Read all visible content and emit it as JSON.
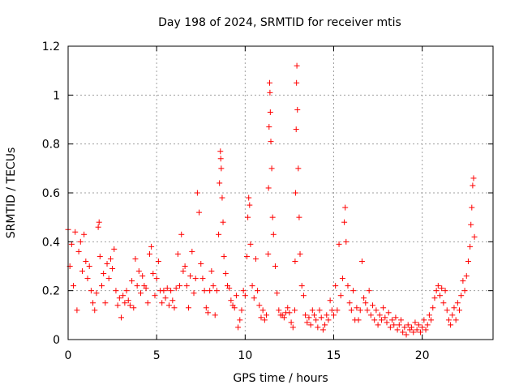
{
  "chart_data": {
    "type": "scatter",
    "title": "Day 198 of 2024, SRMTID for receiver mtis",
    "xlabel": "GPS time / hours",
    "ylabel": "SRMTID / TECUs",
    "xlim": [
      0,
      24
    ],
    "ylim": [
      0,
      1.2
    ],
    "xticks": [
      0,
      5,
      10,
      15,
      20
    ],
    "xtick_labels": [
      "0",
      "5",
      "10",
      "15",
      "20"
    ],
    "yticks": [
      0,
      0.2,
      0.4,
      0.6,
      0.8,
      1,
      1.2
    ],
    "ytick_labels": [
      "0",
      "0.2",
      "0.4",
      "0.6",
      "0.8",
      "1",
      "1.2"
    ],
    "grid": true,
    "marker": "+",
    "color": "#ff0000",
    "series": [
      {
        "name": "mtis",
        "points": [
          [
            0.0,
            0.45
          ],
          [
            0.1,
            0.3
          ],
          [
            0.2,
            0.39
          ],
          [
            0.3,
            0.22
          ],
          [
            0.4,
            0.44
          ],
          [
            0.5,
            0.12
          ],
          [
            0.6,
            0.36
          ],
          [
            0.7,
            0.4
          ],
          [
            0.8,
            0.28
          ],
          [
            0.9,
            0.43
          ],
          [
            1.0,
            0.32
          ],
          [
            1.1,
            0.25
          ],
          [
            1.2,
            0.3
          ],
          [
            1.3,
            0.2
          ],
          [
            1.4,
            0.15
          ],
          [
            1.5,
            0.12
          ],
          [
            1.6,
            0.19
          ],
          [
            1.7,
            0.46
          ],
          [
            1.75,
            0.48
          ],
          [
            1.8,
            0.34
          ],
          [
            1.9,
            0.22
          ],
          [
            2.0,
            0.27
          ],
          [
            2.1,
            0.15
          ],
          [
            2.2,
            0.31
          ],
          [
            2.3,
            0.25
          ],
          [
            2.4,
            0.33
          ],
          [
            2.5,
            0.29
          ],
          [
            2.6,
            0.37
          ],
          [
            2.7,
            0.2
          ],
          [
            2.8,
            0.14
          ],
          [
            2.9,
            0.17
          ],
          [
            3.0,
            0.09
          ],
          [
            3.1,
            0.18
          ],
          [
            3.2,
            0.15
          ],
          [
            3.3,
            0.2
          ],
          [
            3.4,
            0.16
          ],
          [
            3.5,
            0.14
          ],
          [
            3.6,
            0.24
          ],
          [
            3.7,
            0.13
          ],
          [
            3.8,
            0.33
          ],
          [
            3.9,
            0.22
          ],
          [
            4.0,
            0.28
          ],
          [
            4.1,
            0.19
          ],
          [
            4.2,
            0.26
          ],
          [
            4.3,
            0.22
          ],
          [
            4.4,
            0.21
          ],
          [
            4.5,
            0.15
          ],
          [
            4.6,
            0.35
          ],
          [
            4.7,
            0.38
          ],
          [
            4.8,
            0.27
          ],
          [
            4.9,
            0.18
          ],
          [
            5.0,
            0.25
          ],
          [
            5.1,
            0.32
          ],
          [
            5.2,
            0.2
          ],
          [
            5.3,
            0.15
          ],
          [
            5.4,
            0.2
          ],
          [
            5.5,
            0.17
          ],
          [
            5.6,
            0.21
          ],
          [
            5.7,
            0.14
          ],
          [
            5.8,
            0.2
          ],
          [
            5.9,
            0.16
          ],
          [
            6.0,
            0.13
          ],
          [
            6.1,
            0.21
          ],
          [
            6.2,
            0.35
          ],
          [
            6.3,
            0.22
          ],
          [
            6.4,
            0.43
          ],
          [
            6.5,
            0.28
          ],
          [
            6.6,
            0.3
          ],
          [
            6.7,
            0.22
          ],
          [
            6.8,
            0.13
          ],
          [
            6.9,
            0.26
          ],
          [
            7.0,
            0.36
          ],
          [
            7.1,
            0.19
          ],
          [
            7.2,
            0.25
          ],
          [
            7.3,
            0.6
          ],
          [
            7.4,
            0.52
          ],
          [
            7.5,
            0.31
          ],
          [
            7.6,
            0.25
          ],
          [
            7.7,
            0.2
          ],
          [
            7.8,
            0.13
          ],
          [
            7.9,
            0.11
          ],
          [
            8.0,
            0.2
          ],
          [
            8.1,
            0.28
          ],
          [
            8.2,
            0.22
          ],
          [
            8.3,
            0.1
          ],
          [
            8.4,
            0.2
          ],
          [
            8.5,
            0.43
          ],
          [
            8.55,
            0.64
          ],
          [
            8.6,
            0.77
          ],
          [
            8.62,
            0.74
          ],
          [
            8.65,
            0.7
          ],
          [
            8.7,
            0.58
          ],
          [
            8.75,
            0.48
          ],
          [
            8.8,
            0.34
          ],
          [
            8.9,
            0.27
          ],
          [
            9.0,
            0.22
          ],
          [
            9.1,
            0.21
          ],
          [
            9.2,
            0.16
          ],
          [
            9.3,
            0.14
          ],
          [
            9.4,
            0.13
          ],
          [
            9.5,
            0.18
          ],
          [
            9.6,
            0.05
          ],
          [
            9.7,
            0.08
          ],
          [
            9.8,
            0.12
          ],
          [
            9.9,
            0.2
          ],
          [
            10.0,
            0.18
          ],
          [
            10.1,
            0.34
          ],
          [
            10.15,
            0.5
          ],
          [
            10.2,
            0.58
          ],
          [
            10.25,
            0.55
          ],
          [
            10.3,
            0.39
          ],
          [
            10.4,
            0.22
          ],
          [
            10.5,
            0.17
          ],
          [
            10.6,
            0.33
          ],
          [
            10.7,
            0.2
          ],
          [
            10.8,
            0.14
          ],
          [
            10.9,
            0.09
          ],
          [
            11.0,
            0.12
          ],
          [
            11.1,
            0.08
          ],
          [
            11.2,
            0.1
          ],
          [
            11.3,
            0.35
          ],
          [
            11.32,
            0.62
          ],
          [
            11.35,
            0.87
          ],
          [
            11.38,
            1.05
          ],
          [
            11.4,
            1.01
          ],
          [
            11.42,
            0.93
          ],
          [
            11.45,
            0.81
          ],
          [
            11.5,
            0.7
          ],
          [
            11.55,
            0.5
          ],
          [
            11.6,
            0.43
          ],
          [
            11.7,
            0.3
          ],
          [
            11.8,
            0.19
          ],
          [
            11.9,
            0.12
          ],
          [
            12.0,
            0.1
          ],
          [
            12.1,
            0.1
          ],
          [
            12.2,
            0.09
          ],
          [
            12.3,
            0.11
          ],
          [
            12.4,
            0.13
          ],
          [
            12.5,
            0.11
          ],
          [
            12.6,
            0.07
          ],
          [
            12.7,
            0.05
          ],
          [
            12.8,
            0.12
          ],
          [
            12.82,
            0.32
          ],
          [
            12.85,
            0.6
          ],
          [
            12.88,
            0.86
          ],
          [
            12.9,
            1.05
          ],
          [
            12.92,
            1.12
          ],
          [
            12.95,
            0.94
          ],
          [
            13.0,
            0.7
          ],
          [
            13.05,
            0.5
          ],
          [
            13.1,
            0.35
          ],
          [
            13.2,
            0.22
          ],
          [
            13.3,
            0.18
          ],
          [
            13.4,
            0.1
          ],
          [
            13.5,
            0.07
          ],
          [
            13.6,
            0.09
          ],
          [
            13.7,
            0.06
          ],
          [
            13.8,
            0.12
          ],
          [
            13.9,
            0.1
          ],
          [
            14.0,
            0.08
          ],
          [
            14.1,
            0.05
          ],
          [
            14.2,
            0.12
          ],
          [
            14.3,
            0.09
          ],
          [
            14.4,
            0.04
          ],
          [
            14.5,
            0.06
          ],
          [
            14.6,
            0.1
          ],
          [
            14.7,
            0.08
          ],
          [
            14.8,
            0.16
          ],
          [
            14.9,
            0.12
          ],
          [
            15.0,
            0.1
          ],
          [
            15.1,
            0.22
          ],
          [
            15.2,
            0.12
          ],
          [
            15.3,
            0.39
          ],
          [
            15.4,
            0.18
          ],
          [
            15.5,
            0.25
          ],
          [
            15.6,
            0.48
          ],
          [
            15.65,
            0.54
          ],
          [
            15.7,
            0.4
          ],
          [
            15.8,
            0.22
          ],
          [
            15.9,
            0.15
          ],
          [
            16.0,
            0.12
          ],
          [
            16.1,
            0.2
          ],
          [
            16.2,
            0.08
          ],
          [
            16.3,
            0.13
          ],
          [
            16.4,
            0.08
          ],
          [
            16.5,
            0.12
          ],
          [
            16.6,
            0.32
          ],
          [
            16.7,
            0.17
          ],
          [
            16.8,
            0.15
          ],
          [
            16.9,
            0.12
          ],
          [
            17.0,
            0.2
          ],
          [
            17.1,
            0.1
          ],
          [
            17.2,
            0.14
          ],
          [
            17.3,
            0.08
          ],
          [
            17.4,
            0.12
          ],
          [
            17.5,
            0.06
          ],
          [
            17.6,
            0.1
          ],
          [
            17.7,
            0.08
          ],
          [
            17.8,
            0.13
          ],
          [
            17.9,
            0.09
          ],
          [
            18.0,
            0.07
          ],
          [
            18.1,
            0.11
          ],
          [
            18.2,
            0.05
          ],
          [
            18.3,
            0.08
          ],
          [
            18.4,
            0.06
          ],
          [
            18.5,
            0.09
          ],
          [
            18.6,
            0.04
          ],
          [
            18.7,
            0.06
          ],
          [
            18.8,
            0.08
          ],
          [
            18.9,
            0.03
          ],
          [
            19.0,
            0.05
          ],
          [
            19.1,
            0.02
          ],
          [
            19.2,
            0.06
          ],
          [
            19.3,
            0.04
          ],
          [
            19.4,
            0.05
          ],
          [
            19.5,
            0.03
          ],
          [
            19.6,
            0.07
          ],
          [
            19.7,
            0.04
          ],
          [
            19.8,
            0.06
          ],
          [
            19.9,
            0.03
          ],
          [
            20.0,
            0.05
          ],
          [
            20.1,
            0.08
          ],
          [
            20.2,
            0.04
          ],
          [
            20.3,
            0.06
          ],
          [
            20.4,
            0.1
          ],
          [
            20.5,
            0.08
          ],
          [
            20.6,
            0.13
          ],
          [
            20.7,
            0.17
          ],
          [
            20.8,
            0.2
          ],
          [
            20.9,
            0.22
          ],
          [
            21.0,
            0.18
          ],
          [
            21.1,
            0.21
          ],
          [
            21.2,
            0.15
          ],
          [
            21.3,
            0.2
          ],
          [
            21.4,
            0.12
          ],
          [
            21.5,
            0.08
          ],
          [
            21.6,
            0.06
          ],
          [
            21.7,
            0.1
          ],
          [
            21.8,
            0.13
          ],
          [
            21.9,
            0.08
          ],
          [
            22.0,
            0.15
          ],
          [
            22.1,
            0.12
          ],
          [
            22.2,
            0.18
          ],
          [
            22.3,
            0.24
          ],
          [
            22.4,
            0.2
          ],
          [
            22.5,
            0.26
          ],
          [
            22.6,
            0.32
          ],
          [
            22.7,
            0.38
          ],
          [
            22.75,
            0.47
          ],
          [
            22.8,
            0.54
          ],
          [
            22.85,
            0.63
          ],
          [
            22.9,
            0.66
          ],
          [
            22.95,
            0.42
          ]
        ]
      }
    ]
  }
}
